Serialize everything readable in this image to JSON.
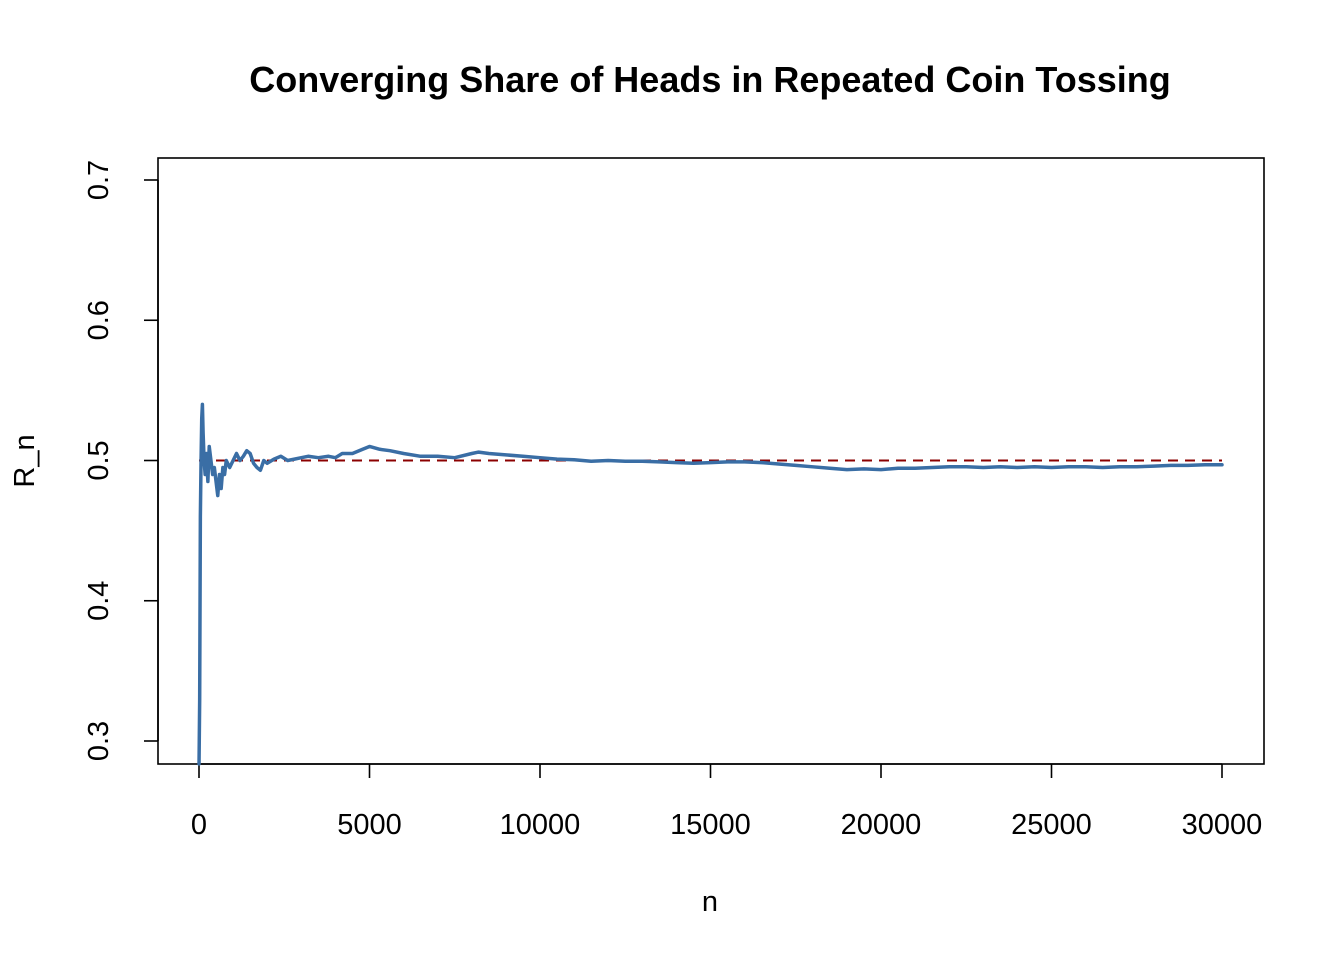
{
  "chart_data": {
    "type": "line",
    "title": "Converging Share of Heads in Repeated Coin Tossing",
    "xlabel": "n",
    "ylabel": "R_n",
    "xlim": [
      0,
      30000
    ],
    "ylim": [
      0.3,
      0.7
    ],
    "x_ticks": [
      0,
      5000,
      10000,
      15000,
      20000,
      25000,
      30000
    ],
    "y_ticks": [
      0.3,
      0.4,
      0.5,
      0.6,
      0.7
    ],
    "x_tick_labels": [
      "0",
      "5000",
      "10000",
      "15000",
      "20000",
      "25000",
      "30000"
    ],
    "y_tick_labels": [
      "0.3",
      "0.4",
      "0.5",
      "0.6",
      "0.7"
    ],
    "grid": false,
    "legend": "none",
    "reference_line": {
      "y": 0.5,
      "style": "dashed",
      "color": "#8B0000"
    },
    "series": [
      {
        "color": "#3A6EA5",
        "x": [
          1,
          20,
          40,
          60,
          80,
          100,
          120,
          150,
          180,
          220,
          260,
          300,
          350,
          400,
          450,
          500,
          550,
          600,
          650,
          700,
          750,
          800,
          900,
          1000,
          1100,
          1200,
          1300,
          1400,
          1500,
          1600,
          1700,
          1800,
          1900,
          2000,
          2200,
          2400,
          2600,
          2800,
          3000,
          3200,
          3500,
          3800,
          4000,
          4200,
          4500,
          4800,
          5000,
          5300,
          5600,
          6000,
          6500,
          7000,
          7500,
          8000,
          8200,
          8500,
          9000,
          9500,
          10000,
          10500,
          11000,
          11500,
          12000,
          12500,
          13000,
          13500,
          14000,
          14500,
          15000,
          15500,
          16000,
          16500,
          17000,
          17500,
          18000,
          18500,
          19000,
          19500,
          20000,
          20500,
          21000,
          21500,
          22000,
          22500,
          23000,
          23500,
          24000,
          24500,
          25000,
          25500,
          26000,
          26500,
          27000,
          27500,
          28000,
          28500,
          29000,
          29500,
          30000
        ],
        "y": [
          0.28,
          0.33,
          0.46,
          0.5,
          0.53,
          0.54,
          0.52,
          0.5,
          0.49,
          0.505,
          0.485,
          0.51,
          0.5,
          0.49,
          0.495,
          0.485,
          0.475,
          0.49,
          0.48,
          0.495,
          0.49,
          0.5,
          0.495,
          0.5,
          0.505,
          0.5,
          0.503,
          0.507,
          0.505,
          0.498,
          0.495,
          0.493,
          0.5,
          0.498,
          0.501,
          0.503,
          0.5,
          0.501,
          0.502,
          0.503,
          0.502,
          0.503,
          0.502,
          0.505,
          0.505,
          0.508,
          0.51,
          0.508,
          0.507,
          0.505,
          0.503,
          0.503,
          0.502,
          0.505,
          0.506,
          0.505,
          0.504,
          0.503,
          0.502,
          0.501,
          0.5005,
          0.4995,
          0.5,
          0.4995,
          0.4995,
          0.499,
          0.4985,
          0.498,
          0.4985,
          0.499,
          0.499,
          0.4985,
          0.4975,
          0.4965,
          0.4955,
          0.4945,
          0.4935,
          0.494,
          0.4935,
          0.4945,
          0.4945,
          0.495,
          0.4955,
          0.4955,
          0.495,
          0.4955,
          0.495,
          0.4955,
          0.495,
          0.4955,
          0.4955,
          0.495,
          0.4955,
          0.4955,
          0.496,
          0.4965,
          0.4965,
          0.497,
          0.497
        ]
      }
    ]
  }
}
